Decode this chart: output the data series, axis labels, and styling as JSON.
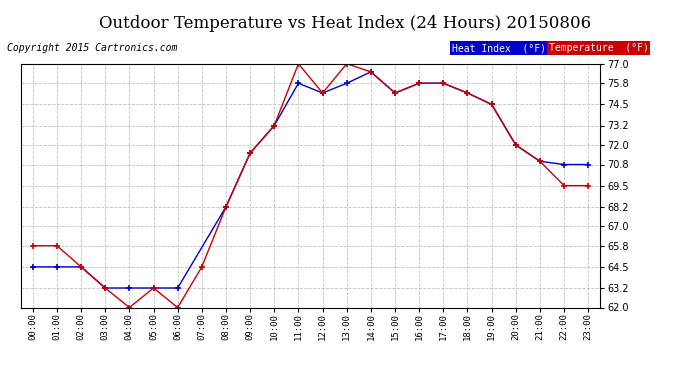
{
  "title": "Outdoor Temperature vs Heat Index (24 Hours) 20150806",
  "copyright": "Copyright 2015 Cartronics.com",
  "hours": [
    "00:00",
    "01:00",
    "02:00",
    "03:00",
    "04:00",
    "05:00",
    "06:00",
    "07:00",
    "08:00",
    "09:00",
    "10:00",
    "11:00",
    "12:00",
    "13:00",
    "14:00",
    "15:00",
    "16:00",
    "17:00",
    "18:00",
    "19:00",
    "20:00",
    "21:00",
    "22:00",
    "23:00"
  ],
  "heat_index": [
    64.5,
    64.5,
    64.5,
    63.2,
    63.2,
    63.2,
    63.2,
    null,
    68.2,
    71.5,
    73.2,
    75.8,
    75.2,
    75.8,
    76.5,
    75.2,
    75.8,
    75.8,
    75.2,
    74.5,
    72.0,
    71.0,
    70.8,
    70.8
  ],
  "temperature": [
    65.8,
    65.8,
    64.5,
    63.2,
    62.0,
    63.2,
    62.0,
    64.5,
    68.2,
    71.5,
    73.2,
    77.0,
    75.2,
    77.0,
    76.5,
    75.2,
    75.8,
    75.8,
    75.2,
    74.5,
    72.0,
    71.0,
    69.5,
    69.5
  ],
  "heat_index_color": "#0000cc",
  "temperature_color": "#cc0000",
  "ylim": [
    62.0,
    77.0
  ],
  "yticks": [
    62.0,
    63.2,
    64.5,
    65.8,
    67.0,
    68.2,
    69.5,
    70.8,
    72.0,
    73.2,
    74.5,
    75.8,
    77.0
  ],
  "background_color": "#ffffff",
  "grid_color": "#bbbbbb",
  "legend_heat_index_bg": "#0000cc",
  "legend_temp_bg": "#cc0000",
  "legend_text_color": "#ffffff",
  "title_fontsize": 12,
  "copyright_fontsize": 7
}
